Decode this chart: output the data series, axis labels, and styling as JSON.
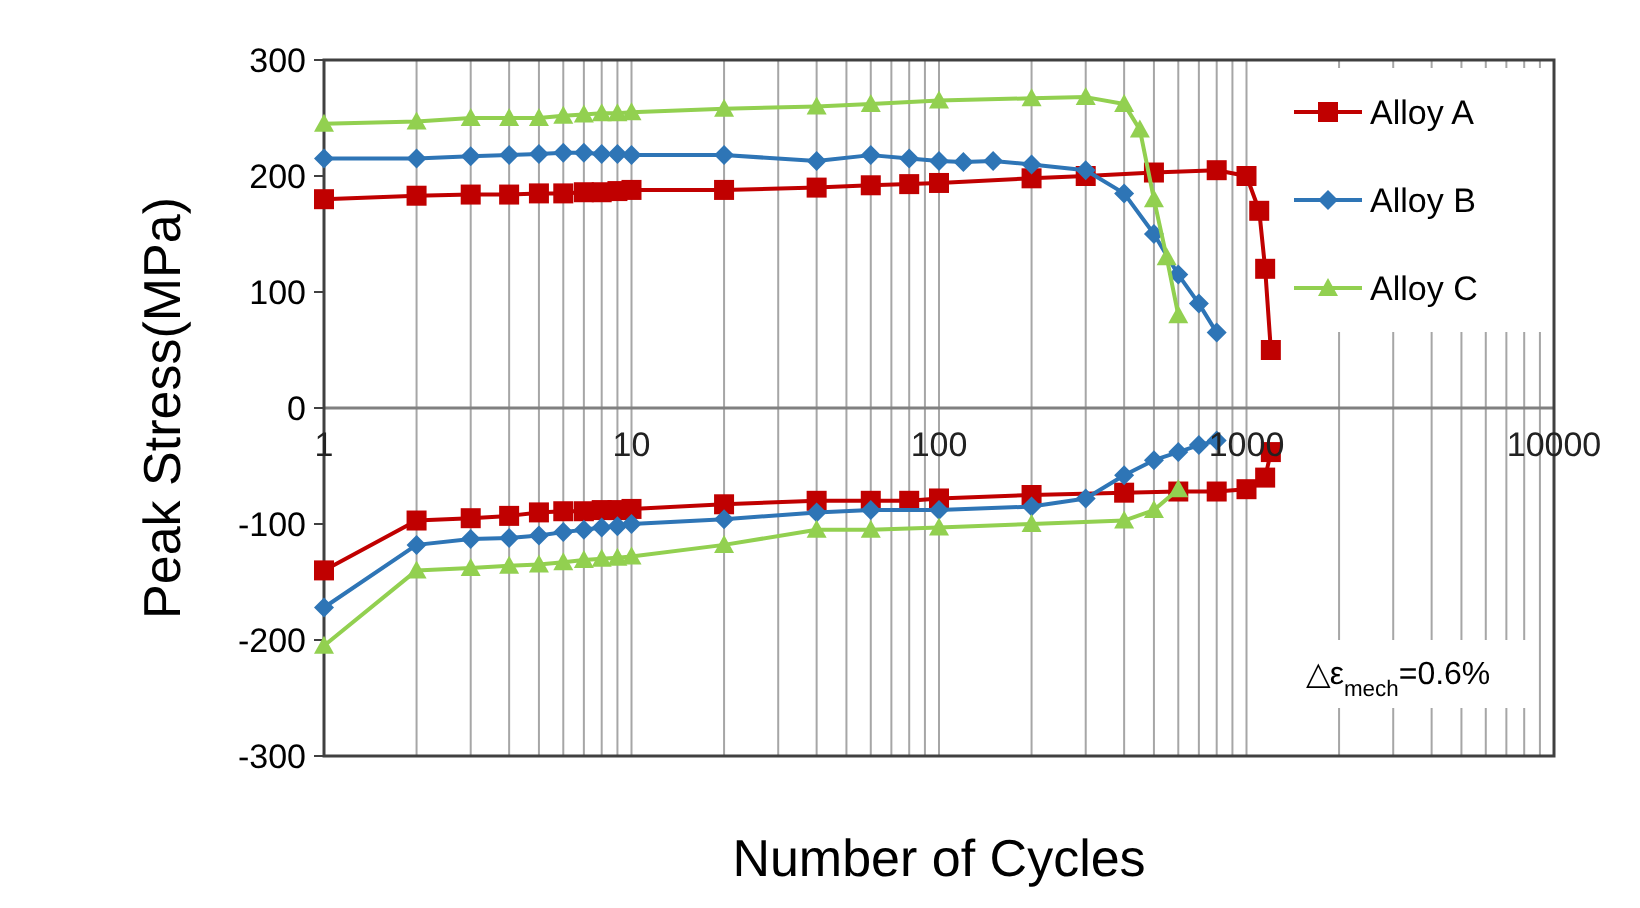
{
  "chart_data": {
    "type": "line",
    "xlabel": "Number of Cycles",
    "ylabel": "Peak Stress(MPa)",
    "log": "x",
    "grid": "x",
    "legend": "top right",
    "xlim": [
      1,
      10000
    ],
    "ylim": [
      -300,
      300
    ],
    "yticks": [
      -300,
      -200,
      -100,
      0,
      100,
      200,
      300
    ],
    "xticks": [
      1,
      {
        "value": 2,
        "label": null
      },
      {
        "value": 3,
        "label": null
      },
      {
        "value": 4,
        "label": null
      },
      {
        "value": 5,
        "label": null
      },
      {
        "value": 6,
        "label": null
      },
      {
        "value": 7,
        "label": null
      },
      {
        "value": 8,
        "label": null
      },
      {
        "value": 9,
        "label": null
      },
      10,
      {
        "value": 20,
        "label": null
      },
      {
        "value": 30,
        "label": null
      },
      {
        "value": 40,
        "label": null
      },
      {
        "value": 50,
        "label": null
      },
      {
        "value": 60,
        "label": null
      },
      {
        "value": 70,
        "label": null
      },
      {
        "value": 80,
        "label": null
      },
      {
        "value": 90,
        "label": null
      },
      100,
      {
        "value": 200,
        "label": null
      },
      {
        "value": 300,
        "label": null
      },
      {
        "value": 400,
        "label": null
      },
      {
        "value": 500,
        "label": null
      },
      {
        "value": 600,
        "label": null
      },
      {
        "value": 700,
        "label": null
      },
      {
        "value": 800,
        "label": null
      },
      {
        "value": 900,
        "label": null
      },
      1000,
      {
        "value": 2000,
        "label": null
      },
      {
        "value": 3000,
        "label": null
      },
      {
        "value": 4000,
        "label": null
      },
      {
        "value": 5000,
        "label": null
      },
      {
        "value": 6000,
        "label": null
      },
      {
        "value": 7000,
        "label": null
      },
      {
        "value": 8000,
        "label": null
      },
      {
        "value": 9000,
        "label": null
      },
      10000
    ],
    "annotations": [
      "△ε$_{mech}$=0.6%"
    ],
    "series": [
      {
        "name": "Alloy A",
        "color": "#c00000",
        "marker": "square",
        "x": [
          1,
          2,
          3,
          4,
          5,
          6,
          7,
          8,
          9,
          10,
          20,
          40,
          60,
          80,
          100,
          200,
          300,
          500,
          800,
          1000,
          1100,
          1150,
          1200
        ],
        "values": [
          180,
          183,
          184,
          184,
          185,
          185,
          186,
          186,
          187,
          188,
          188,
          190,
          192,
          193,
          194,
          198,
          200,
          203,
          205,
          200,
          170,
          120,
          50
        ]
      },
      {
        "name": "Alloy B",
        "color": "#2e75b6",
        "marker": "diamond",
        "x": [
          1,
          2,
          3,
          4,
          5,
          6,
          7,
          8,
          9,
          10,
          20,
          40,
          60,
          80,
          100,
          120,
          150,
          200,
          300,
          400,
          500,
          600,
          700,
          800
        ],
        "values": [
          215,
          215,
          217,
          218,
          219,
          220,
          220,
          219,
          219,
          218,
          218,
          213,
          218,
          215,
          213,
          212,
          213,
          210,
          205,
          185,
          150,
          115,
          90,
          65
        ]
      },
      {
        "name": "Alloy C",
        "color": "#92d050",
        "marker": "triangle",
        "x": [
          1,
          2,
          3,
          4,
          5,
          6,
          7,
          8,
          9,
          10,
          20,
          40,
          60,
          100,
          200,
          300,
          400,
          450,
          500,
          550,
          600
        ],
        "values": [
          245,
          247,
          250,
          250,
          250,
          252,
          253,
          254,
          254,
          255,
          258,
          260,
          262,
          265,
          267,
          268,
          262,
          240,
          180,
          130,
          80
        ]
      },
      {
        "color": "#c00000",
        "marker": "square",
        "x": [
          1,
          2,
          3,
          4,
          5,
          6,
          7,
          8,
          9,
          10,
          20,
          40,
          60,
          80,
          100,
          200,
          400,
          600,
          800,
          1000,
          1150,
          1200
        ],
        "values": [
          -140,
          -97,
          -95,
          -93,
          -90,
          -89,
          -89,
          -88,
          -88,
          -87,
          -83,
          -80,
          -80,
          -80,
          -78,
          -75,
          -73,
          -72,
          -72,
          -70,
          -60,
          -38
        ]
      },
      {
        "color": "#2e75b6",
        "marker": "diamond",
        "x": [
          1,
          2,
          3,
          4,
          5,
          6,
          7,
          8,
          9,
          10,
          20,
          40,
          60,
          100,
          200,
          300,
          400,
          500,
          600,
          700,
          800
        ],
        "values": [
          -172,
          -118,
          -113,
          -112,
          -110,
          -107,
          -105,
          -103,
          -102,
          -100,
          -96,
          -90,
          -88,
          -88,
          -85,
          -78,
          -58,
          -45,
          -38,
          -32,
          -28
        ]
      },
      {
        "color": "#92d050",
        "marker": "triangle",
        "x": [
          1,
          2,
          3,
          4,
          5,
          6,
          7,
          8,
          9,
          10,
          20,
          40,
          60,
          100,
          200,
          400,
          500,
          600
        ],
        "values": [
          -205,
          -140,
          -138,
          -136,
          -135,
          -133,
          -131,
          -130,
          -129,
          -128,
          -118,
          -105,
          -105,
          -103,
          -100,
          -97,
          -88,
          -70
        ]
      }
    ]
  }
}
